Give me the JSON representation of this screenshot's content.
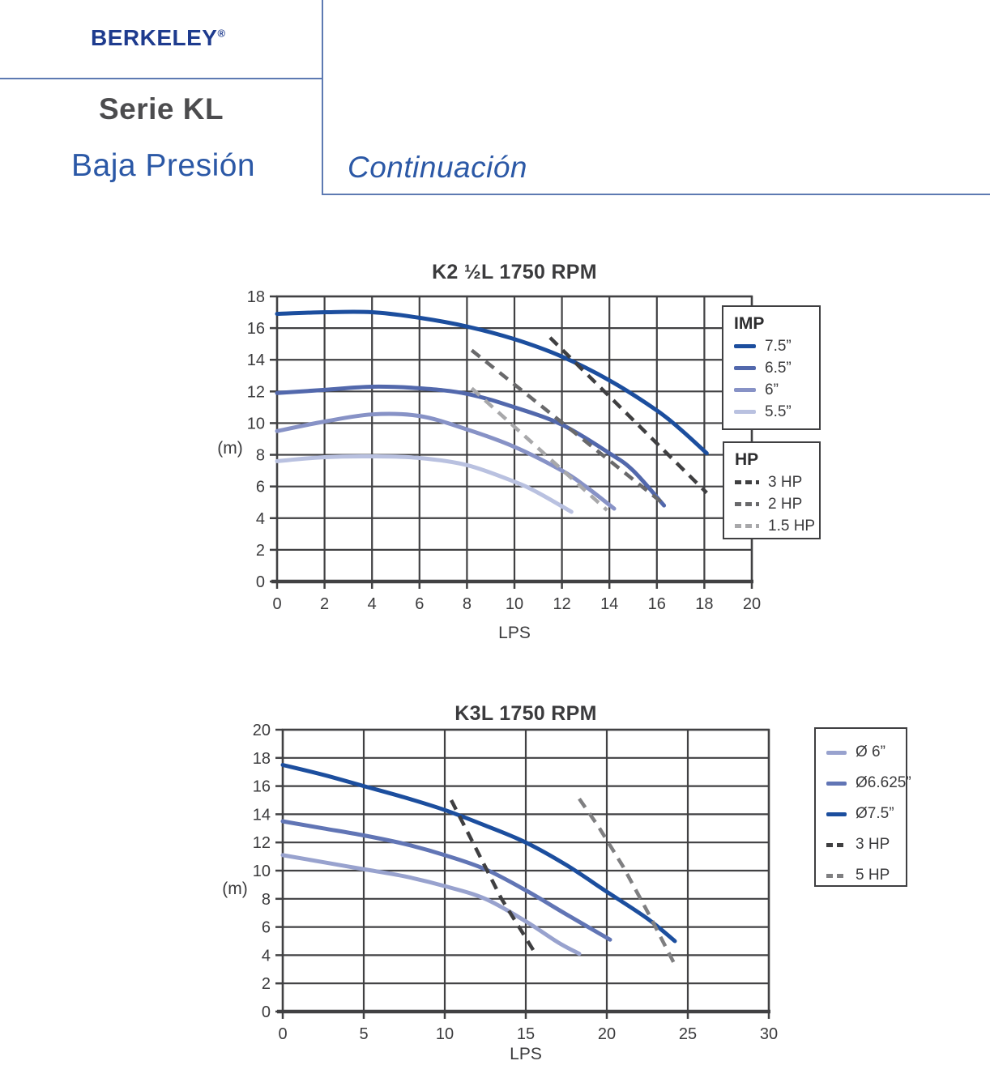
{
  "header": {
    "brand": "BERKELEY",
    "registered_mark": "®",
    "series_title": "Serie KL",
    "subtitle": "Baja Presión",
    "continuation": "Continuación"
  },
  "colors": {
    "brand_blue": "#1e3b8e",
    "accent_blue": "#2b58a6",
    "rule_blue": "#5d7ab2",
    "grid_gray": "#414143",
    "imp_75": "#1c4e9e",
    "imp_65": "#5268ac",
    "imp_6": "#8792c6",
    "imp_55": "#b9c1e0",
    "k3_6625": "#6175b5",
    "k3_6": "#98a2ce",
    "hp3_gray": "#3f3f41",
    "hp2_gray": "#69696b",
    "hp15_gray": "#a8a8aa",
    "hp5_gray": "#7f7f81"
  },
  "chart_data": [
    {
      "type": "line",
      "title": "K2 ½L 1750 RPM",
      "xlabel": "LPS",
      "ylabel": "(m)",
      "xlim": [
        0,
        20
      ],
      "ylim": [
        0,
        18
      ],
      "xtick_step": 2,
      "ytick_step": 2,
      "grid": true,
      "legend_position": "right-overlapping-plot",
      "legend_boxes": [
        {
          "title": "IMP",
          "entries": [
            {
              "label": "7.5”",
              "style": "solid",
              "color": "#1c4e9e"
            },
            {
              "label": "6.5”",
              "style": "solid",
              "color": "#5268ac"
            },
            {
              "label": "6”",
              "style": "solid",
              "color": "#8792c6"
            },
            {
              "label": "5.5”",
              "style": "solid",
              "color": "#b9c1e0"
            }
          ]
        },
        {
          "title": "HP",
          "entries": [
            {
              "label": "3 HP",
              "style": "dashed",
              "color": "#3f3f41"
            },
            {
              "label": "2 HP",
              "style": "dashed",
              "color": "#69696b"
            },
            {
              "label": "1.5 HP",
              "style": "dashed",
              "color": "#a8a8aa"
            }
          ]
        }
      ],
      "series": [
        {
          "name": "7.5 in impeller",
          "style": "solid",
          "color": "#1c4e9e",
          "points": [
            [
              0,
              16.9
            ],
            [
              2,
              17.0
            ],
            [
              4,
              17.0
            ],
            [
              6,
              16.65
            ],
            [
              8,
              16.1
            ],
            [
              10,
              15.3
            ],
            [
              12,
              14.2
            ],
            [
              14,
              12.7
            ],
            [
              16,
              10.8
            ],
            [
              17,
              9.6
            ],
            [
              18.1,
              8.1
            ]
          ]
        },
        {
          "name": "6.5 in impeller",
          "style": "solid",
          "color": "#5268ac",
          "points": [
            [
              0,
              11.9
            ],
            [
              2,
              12.1
            ],
            [
              4,
              12.3
            ],
            [
              6,
              12.2
            ],
            [
              8,
              11.85
            ],
            [
              10,
              11.0
            ],
            [
              12,
              9.9
            ],
            [
              14,
              8.1
            ],
            [
              15,
              7.0
            ],
            [
              16.3,
              4.8
            ]
          ]
        },
        {
          "name": "6 in impeller",
          "style": "solid",
          "color": "#8792c6",
          "points": [
            [
              0,
              9.5
            ],
            [
              2,
              10.1
            ],
            [
              4,
              10.55
            ],
            [
              6,
              10.45
            ],
            [
              8,
              9.6
            ],
            [
              10,
              8.5
            ],
            [
              12,
              7.0
            ],
            [
              13,
              6.0
            ],
            [
              14.2,
              4.6
            ]
          ]
        },
        {
          "name": "5.5 in impeller",
          "style": "solid",
          "color": "#b9c1e0",
          "points": [
            [
              0,
              7.6
            ],
            [
              2,
              7.85
            ],
            [
              4,
              7.9
            ],
            [
              6,
              7.8
            ],
            [
              8,
              7.35
            ],
            [
              10,
              6.3
            ],
            [
              11,
              5.6
            ],
            [
              12.4,
              4.4
            ]
          ]
        },
        {
          "name": "3 HP limit",
          "style": "dashed",
          "color": "#3f3f41",
          "points": [
            [
              11.5,
              15.4
            ],
            [
              18.1,
              5.6
            ]
          ]
        },
        {
          "name": "2 HP limit",
          "style": "dashed",
          "color": "#69696b",
          "points": [
            [
              8.2,
              14.6
            ],
            [
              16.2,
              5.0
            ]
          ]
        },
        {
          "name": "1.5 HP limit",
          "style": "dashed",
          "color": "#a8a8aa",
          "points": [
            [
              8.2,
              12.2
            ],
            [
              13.9,
              4.5
            ]
          ]
        }
      ]
    },
    {
      "type": "line",
      "title": "K3L 1750 RPM",
      "xlabel": "LPS",
      "ylabel": "(m)",
      "xlim": [
        0,
        30
      ],
      "ylim": [
        0,
        20
      ],
      "xtick_step": 5,
      "ytick_step": 2,
      "grid": true,
      "legend_position": "right-outside-plot",
      "legend_boxes": [
        {
          "title": "",
          "entries": [
            {
              "label": "Ø 6”",
              "style": "solid",
              "color": "#98a2ce"
            },
            {
              "label": "Ø6.625”",
              "style": "solid",
              "color": "#6175b5"
            },
            {
              "label": "Ø7.5”",
              "style": "solid",
              "color": "#1c4e9e"
            },
            {
              "label": "3 HP",
              "style": "dashed",
              "color": "#3f3f41"
            },
            {
              "label": "5 HP",
              "style": "dashed",
              "color": "#7f7f81"
            }
          ]
        }
      ],
      "series": [
        {
          "name": "7.5 in impeller",
          "style": "solid",
          "color": "#1c4e9e",
          "points": [
            [
              0,
              17.5
            ],
            [
              2.5,
              16.8
            ],
            [
              5,
              16.0
            ],
            [
              7.5,
              15.2
            ],
            [
              10,
              14.3
            ],
            [
              12.5,
              13.2
            ],
            [
              15,
              12.0
            ],
            [
              17.5,
              10.4
            ],
            [
              20,
              8.5
            ],
            [
              22.5,
              6.6
            ],
            [
              24.2,
              5.0
            ]
          ]
        },
        {
          "name": "6.625 in impeller",
          "style": "solid",
          "color": "#6175b5",
          "points": [
            [
              0,
              13.5
            ],
            [
              2.5,
              13.0
            ],
            [
              5,
              12.5
            ],
            [
              7.5,
              11.9
            ],
            [
              10,
              11.1
            ],
            [
              12.5,
              10.1
            ],
            [
              15,
              8.6
            ],
            [
              17.5,
              6.9
            ],
            [
              20.2,
              5.1
            ]
          ]
        },
        {
          "name": "6 in impeller",
          "style": "solid",
          "color": "#98a2ce",
          "points": [
            [
              0,
              11.1
            ],
            [
              2.5,
              10.6
            ],
            [
              5,
              10.1
            ],
            [
              7.5,
              9.6
            ],
            [
              10,
              8.9
            ],
            [
              12.5,
              8.0
            ],
            [
              15,
              6.4
            ],
            [
              17,
              4.9
            ],
            [
              18.3,
              4.1
            ]
          ]
        },
        {
          "name": "3 HP limit",
          "style": "dashed",
          "color": "#3f3f41",
          "points": [
            [
              10.4,
              15.0
            ],
            [
              12.0,
              11.4
            ],
            [
              13.5,
              8.0
            ],
            [
              14.8,
              5.6
            ],
            [
              15.6,
              4.1
            ]
          ]
        },
        {
          "name": "5 HP limit",
          "style": "dashed",
          "color": "#7f7f81",
          "points": [
            [
              18.3,
              15.1
            ],
            [
              19.5,
              13.1
            ],
            [
              21,
              10.3
            ],
            [
              22.6,
              6.9
            ],
            [
              24.3,
              3.1
            ]
          ]
        }
      ]
    }
  ]
}
